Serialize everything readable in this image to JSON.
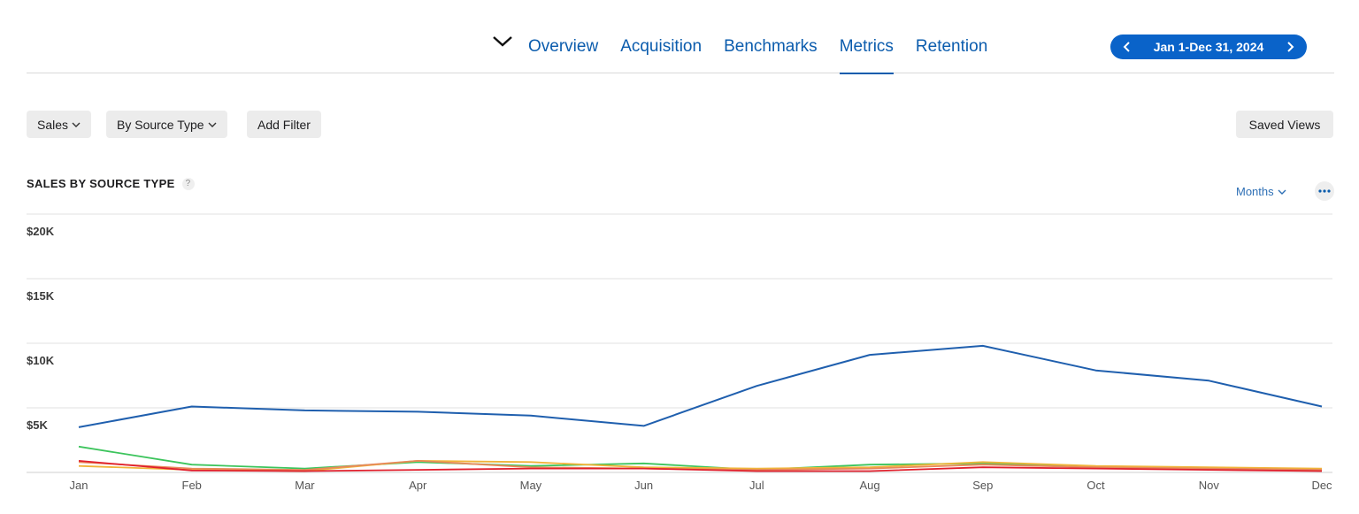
{
  "nav": {
    "tabs": [
      {
        "label": "Overview",
        "active": false
      },
      {
        "label": "Acquisition",
        "active": false
      },
      {
        "label": "Benchmarks",
        "active": false
      },
      {
        "label": "Metrics",
        "active": true
      },
      {
        "label": "Retention",
        "active": false
      }
    ],
    "date_range": "Jan 1-Dec 31, 2024",
    "accent_color": "#0b5cad",
    "pill_color": "#0a63c9"
  },
  "filters": {
    "metric": "Sales",
    "group_by": "By Source Type",
    "add_filter": "Add Filter",
    "saved_views": "Saved Views"
  },
  "chart_section": {
    "title": "SALES BY SOURCE TYPE",
    "help": "?",
    "interval": "Months"
  },
  "chart_data": {
    "type": "line",
    "title": "SALES BY SOURCE TYPE",
    "x": [
      "Jan",
      "Feb",
      "Mar",
      "Apr",
      "May",
      "Jun",
      "Jul",
      "Aug",
      "Sep",
      "Oct",
      "Nov",
      "Dec"
    ],
    "y_ticks": [
      "$5K",
      "$10K",
      "$15K",
      "$20K"
    ],
    "y_tick_values": [
      5000,
      10000,
      15000,
      20000
    ],
    "ylim": [
      0,
      20000
    ],
    "grid": true,
    "series": [
      {
        "color": "#1f5fae",
        "values": [
          3500,
          5100,
          4800,
          4700,
          4400,
          3600,
          6700,
          9100,
          9800,
          7900,
          7100,
          5100
        ]
      },
      {
        "color": "#3cc45c",
        "values": [
          2000,
          600,
          300,
          800,
          500,
          700,
          200,
          600,
          700,
          400,
          300,
          200
        ]
      },
      {
        "color": "#f0b43a",
        "values": [
          500,
          200,
          100,
          900,
          800,
          400,
          300,
          400,
          800,
          500,
          400,
          300
        ]
      },
      {
        "color": "#e8895a",
        "values": [
          800,
          300,
          200,
          900,
          400,
          300,
          200,
          300,
          600,
          400,
          300,
          200
        ]
      },
      {
        "color": "#e0202d",
        "values": [
          900,
          150,
          100,
          200,
          300,
          300,
          100,
          100,
          400,
          300,
          200,
          100
        ]
      }
    ]
  }
}
